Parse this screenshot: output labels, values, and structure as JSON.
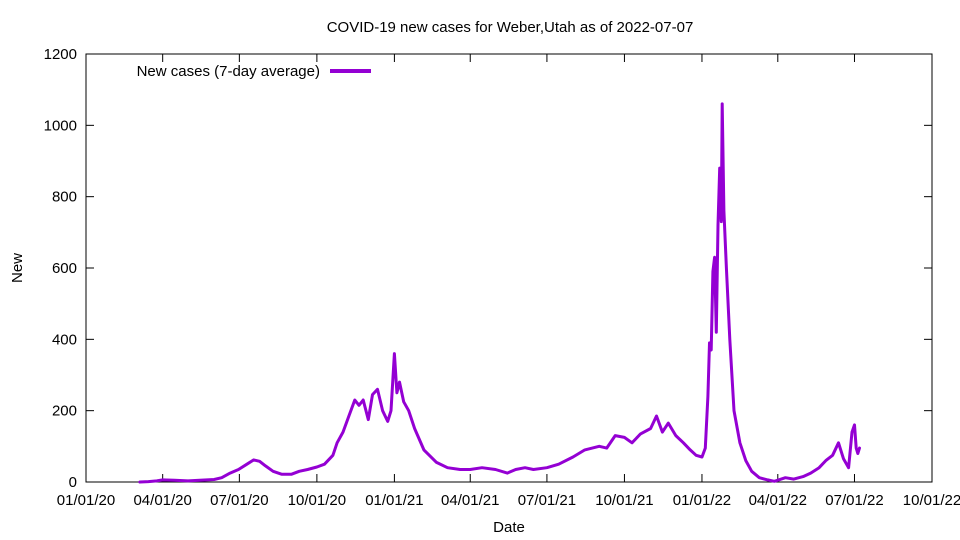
{
  "chart_data": {
    "type": "line",
    "title": "COVID-19 new cases for Weber,Utah as of 2022-07-07",
    "xlabel": "Date",
    "ylabel": "New",
    "x_ticks": [
      "01/01/20",
      "04/01/20",
      "07/01/20",
      "10/01/20",
      "01/01/21",
      "04/01/21",
      "07/01/21",
      "10/01/21",
      "01/01/22",
      "04/01/22",
      "07/01/22",
      "10/01/22"
    ],
    "xlim": [
      "2020-01-01",
      "2022-10-01"
    ],
    "ylim": [
      0,
      1200
    ],
    "y_ticks": [
      0,
      200,
      400,
      600,
      800,
      1000,
      1200
    ],
    "grid": false,
    "legend_position": "top-left",
    "series": [
      {
        "name": "New cases (7-day average)",
        "color": "#9400d3",
        "points": [
          [
            "2020-03-05",
            0
          ],
          [
            "2020-03-15",
            1
          ],
          [
            "2020-03-25",
            3
          ],
          [
            "2020-04-01",
            6
          ],
          [
            "2020-04-15",
            5
          ],
          [
            "2020-05-01",
            3
          ],
          [
            "2020-05-15",
            5
          ],
          [
            "2020-06-01",
            7
          ],
          [
            "2020-06-10",
            12
          ],
          [
            "2020-06-20",
            25
          ],
          [
            "2020-06-30",
            35
          ],
          [
            "2020-07-10",
            50
          ],
          [
            "2020-07-18",
            62
          ],
          [
            "2020-07-25",
            58
          ],
          [
            "2020-08-01",
            45
          ],
          [
            "2020-08-10",
            30
          ],
          [
            "2020-08-20",
            22
          ],
          [
            "2020-09-01",
            22
          ],
          [
            "2020-09-10",
            30
          ],
          [
            "2020-09-20",
            35
          ],
          [
            "2020-10-01",
            42
          ],
          [
            "2020-10-10",
            50
          ],
          [
            "2020-10-20",
            75
          ],
          [
            "2020-10-25",
            110
          ],
          [
            "2020-11-01",
            140
          ],
          [
            "2020-11-08",
            185
          ],
          [
            "2020-11-15",
            230
          ],
          [
            "2020-11-20",
            215
          ],
          [
            "2020-11-25",
            230
          ],
          [
            "2020-12-01",
            175
          ],
          [
            "2020-12-06",
            245
          ],
          [
            "2020-12-12",
            260
          ],
          [
            "2020-12-18",
            200
          ],
          [
            "2020-12-24",
            170
          ],
          [
            "2020-12-28",
            200
          ],
          [
            "2021-01-01",
            360
          ],
          [
            "2021-01-04",
            250
          ],
          [
            "2021-01-07",
            280
          ],
          [
            "2021-01-12",
            225
          ],
          [
            "2021-01-18",
            200
          ],
          [
            "2021-01-25",
            150
          ],
          [
            "2021-02-05",
            90
          ],
          [
            "2021-02-20",
            55
          ],
          [
            "2021-03-05",
            40
          ],
          [
            "2021-03-20",
            35
          ],
          [
            "2021-04-01",
            35
          ],
          [
            "2021-04-15",
            40
          ],
          [
            "2021-05-01",
            35
          ],
          [
            "2021-05-15",
            25
          ],
          [
            "2021-05-25",
            35
          ],
          [
            "2021-06-05",
            40
          ],
          [
            "2021-06-15",
            35
          ],
          [
            "2021-07-01",
            40
          ],
          [
            "2021-07-15",
            50
          ],
          [
            "2021-08-01",
            70
          ],
          [
            "2021-08-15",
            90
          ],
          [
            "2021-09-01",
            100
          ],
          [
            "2021-09-10",
            95
          ],
          [
            "2021-09-20",
            130
          ],
          [
            "2021-10-01",
            125
          ],
          [
            "2021-10-10",
            110
          ],
          [
            "2021-10-20",
            135
          ],
          [
            "2021-11-01",
            150
          ],
          [
            "2021-11-08",
            185
          ],
          [
            "2021-11-15",
            140
          ],
          [
            "2021-11-22",
            165
          ],
          [
            "2021-12-01",
            130
          ],
          [
            "2021-12-10",
            110
          ],
          [
            "2021-12-18",
            90
          ],
          [
            "2021-12-25",
            75
          ],
          [
            "2022-01-01",
            70
          ],
          [
            "2022-01-05",
            95
          ],
          [
            "2022-01-08",
            240
          ],
          [
            "2022-01-10",
            390
          ],
          [
            "2022-01-12",
            370
          ],
          [
            "2022-01-14",
            590
          ],
          [
            "2022-01-16",
            630
          ],
          [
            "2022-01-18",
            420
          ],
          [
            "2022-01-20",
            720
          ],
          [
            "2022-01-22",
            880
          ],
          [
            "2022-01-24",
            730
          ],
          [
            "2022-01-25",
            1060
          ],
          [
            "2022-01-27",
            760
          ],
          [
            "2022-01-30",
            600
          ],
          [
            "2022-02-03",
            400
          ],
          [
            "2022-02-08",
            200
          ],
          [
            "2022-02-15",
            110
          ],
          [
            "2022-02-22",
            60
          ],
          [
            "2022-03-01",
            30
          ],
          [
            "2022-03-10",
            12
          ],
          [
            "2022-03-20",
            6
          ],
          [
            "2022-03-28",
            2
          ],
          [
            "2022-04-01",
            5
          ],
          [
            "2022-04-10",
            12
          ],
          [
            "2022-04-20",
            8
          ],
          [
            "2022-05-01",
            15
          ],
          [
            "2022-05-10",
            25
          ],
          [
            "2022-05-20",
            40
          ],
          [
            "2022-05-28",
            60
          ],
          [
            "2022-06-05",
            75
          ],
          [
            "2022-06-12",
            110
          ],
          [
            "2022-06-18",
            65
          ],
          [
            "2022-06-24",
            40
          ],
          [
            "2022-06-28",
            140
          ],
          [
            "2022-07-01",
            160
          ],
          [
            "2022-07-03",
            95
          ],
          [
            "2022-07-05",
            80
          ],
          [
            "2022-07-07",
            95
          ]
        ]
      }
    ]
  }
}
